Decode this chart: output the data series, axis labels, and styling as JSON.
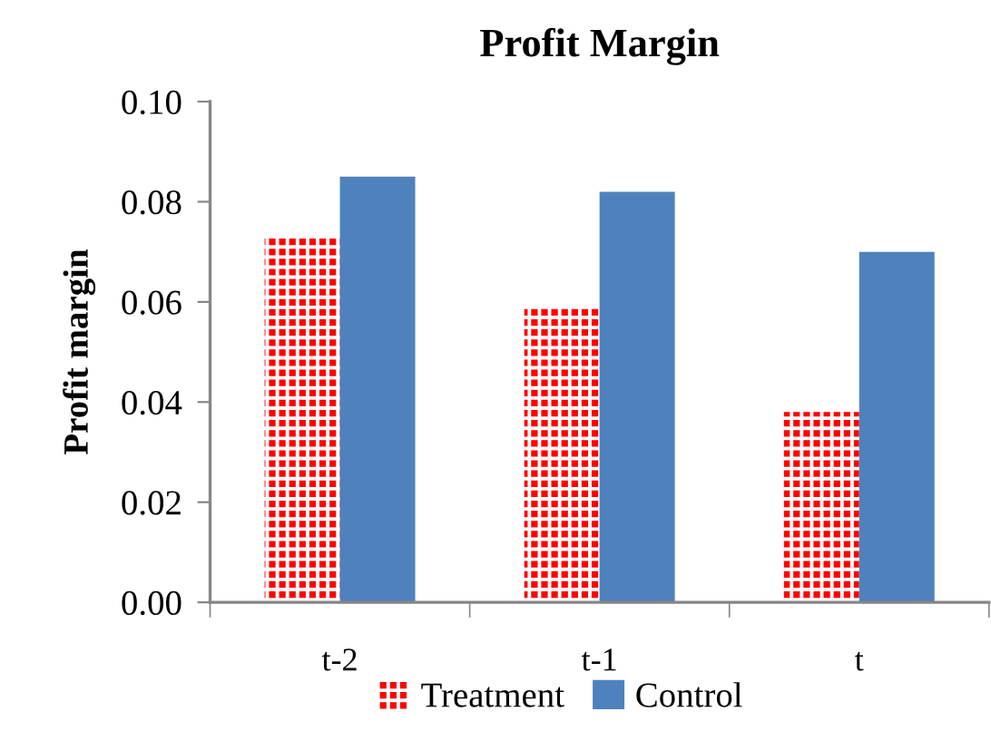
{
  "chart_data": {
    "type": "bar",
    "title": "Profit Margin",
    "ylabel": "Profit margin",
    "categories": [
      "t-2",
      "t-1",
      "t"
    ],
    "series": [
      {
        "name": "Treatment",
        "color": "#ff0000",
        "values": [
          0.073,
          0.059,
          0.038
        ]
      },
      {
        "name": "Control",
        "color": "#4f81bd",
        "values": [
          0.085,
          0.082,
          0.07
        ]
      }
    ],
    "ylim": [
      0,
      0.1
    ],
    "yticks": [
      {
        "value": 0,
        "label": "0.00"
      },
      {
        "value": 0.02,
        "label": "0.02"
      },
      {
        "value": 0.04,
        "label": "0.04"
      },
      {
        "value": 0.06,
        "label": "0.06"
      },
      {
        "value": 0.08,
        "label": "0.08"
      },
      {
        "value": 0.1,
        "label": "0.10"
      }
    ],
    "grid": false,
    "legend": "bottom"
  }
}
